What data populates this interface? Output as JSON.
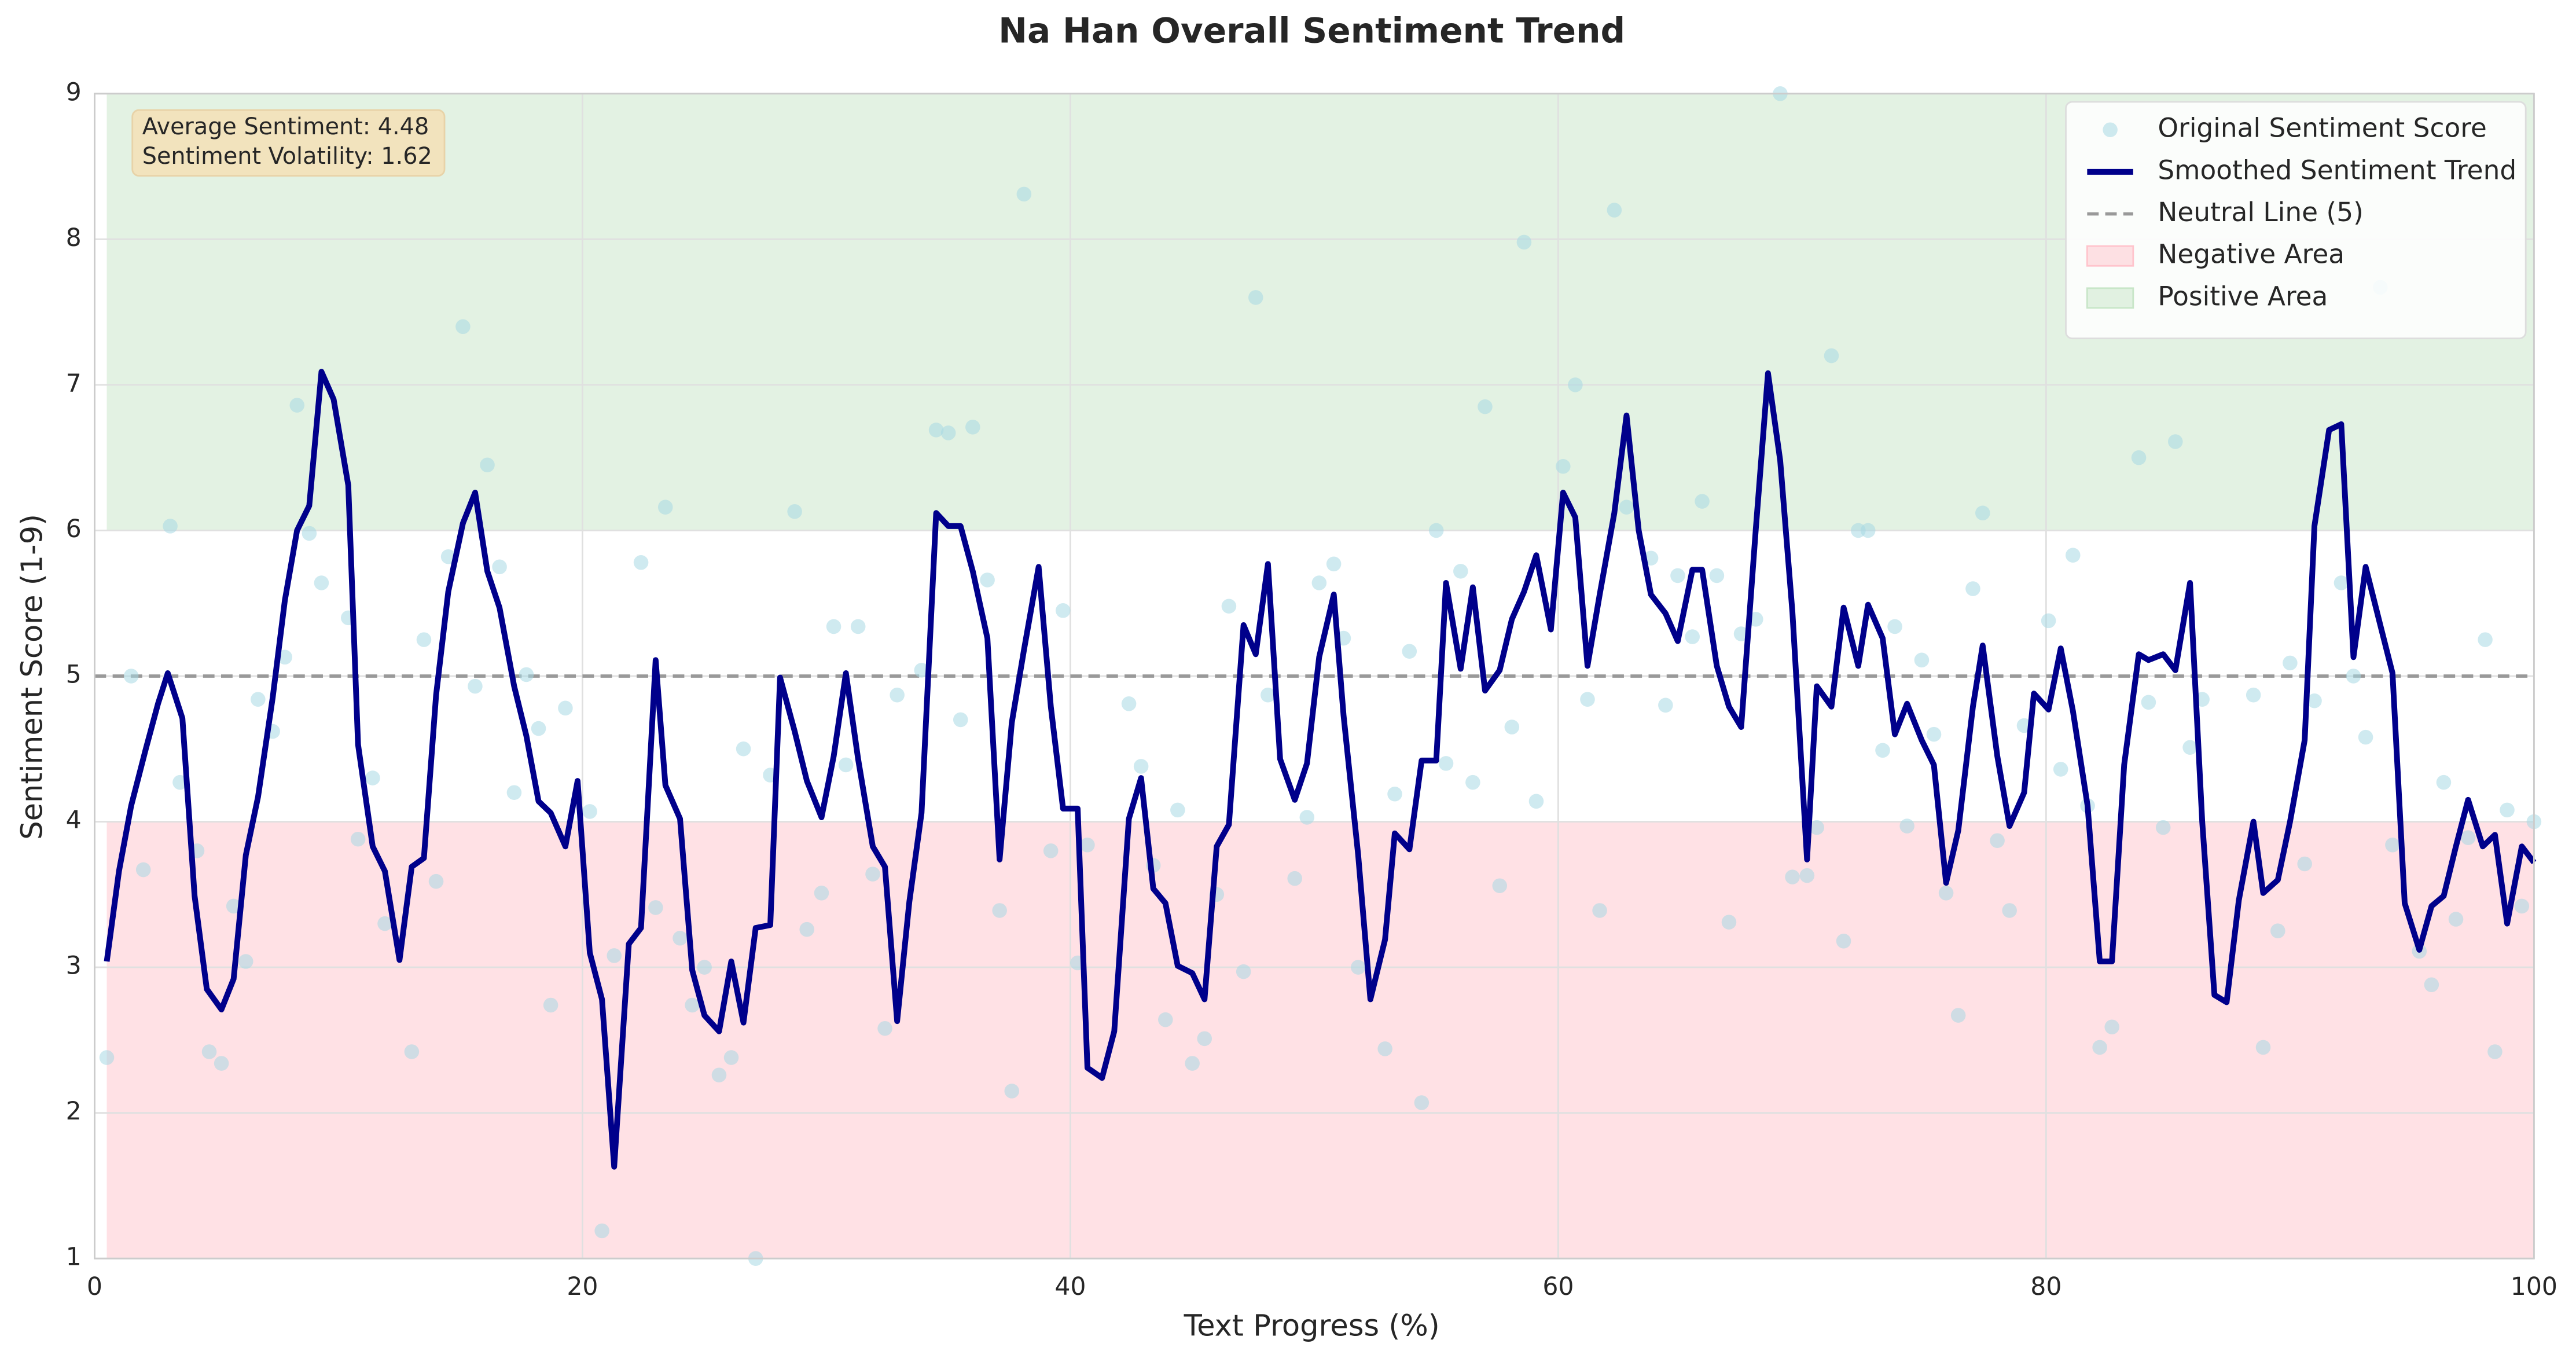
{
  "chart_data": {
    "type": "line",
    "title": "Na Han Overall Sentiment Trend",
    "xlabel": "Text Progress (%)",
    "ylabel": "Sentiment Score (1-9)",
    "xlim": [
      0,
      100
    ],
    "ylim": [
      1,
      9
    ],
    "xticks": [
      0,
      20,
      40,
      60,
      80,
      100
    ],
    "yticks": [
      1,
      2,
      3,
      4,
      5,
      6,
      7,
      8,
      9
    ],
    "grid": true,
    "legend": "upper right",
    "annotations": [
      "Average Sentiment: 4.48",
      "Sentiment Volatility: 1.62"
    ],
    "bands": [
      {
        "name": "Negative Area",
        "range": [
          1,
          4
        ],
        "color": "#ffc4cc"
      },
      {
        "name": "Positive Area",
        "range": [
          6,
          9
        ],
        "color": "#c8e6c8"
      }
    ],
    "neutral_line": {
      "name": "Neutral Line (5)",
      "value": 5,
      "color": "#999999"
    },
    "series": [
      {
        "name": "Original Sentiment Score",
        "type": "scatter",
        "color": "#a8d8e3",
        "x": [
          0.5,
          1.5,
          2.0,
          3.1,
          3.5,
          4.2,
          4.7,
          5.2,
          5.7,
          6.2,
          6.7,
          7.3,
          7.8,
          8.3,
          8.8,
          9.3,
          10.4,
          10.8,
          11.4,
          11.9,
          13.0,
          13.5,
          14.0,
          14.5,
          15.1,
          15.6,
          16.1,
          16.6,
          17.2,
          17.7,
          18.2,
          18.7,
          19.3,
          20.3,
          20.8,
          21.3,
          22.4,
          23.0,
          23.4,
          24.0,
          24.5,
          25.0,
          25.6,
          26.1,
          26.6,
          27.1,
          27.7,
          28.7,
          29.2,
          29.8,
          30.3,
          30.8,
          31.3,
          31.9,
          32.4,
          32.9,
          33.9,
          34.5,
          35.0,
          35.5,
          36.0,
          36.6,
          37.1,
          37.6,
          38.1,
          39.2,
          39.7,
          40.3,
          40.7,
          42.4,
          42.9,
          43.4,
          43.9,
          44.4,
          45.0,
          45.5,
          46.0,
          46.5,
          47.1,
          47.6,
          48.1,
          49.2,
          49.7,
          50.2,
          50.8,
          51.2,
          51.8,
          52.9,
          53.3,
          53.9,
          54.4,
          55.0,
          55.4,
          56.0,
          56.5,
          57.0,
          57.6,
          58.1,
          58.6,
          59.1,
          60.2,
          60.7,
          61.2,
          61.7,
          62.3,
          62.8,
          63.8,
          64.4,
          64.9,
          65.5,
          65.9,
          66.5,
          67.0,
          67.5,
          68.1,
          69.1,
          69.6,
          70.2,
          70.6,
          71.2,
          71.7,
          72.3,
          72.7,
          73.3,
          73.8,
          74.3,
          74.9,
          75.4,
          75.9,
          76.4,
          77.0,
          77.4,
          78.0,
          78.5,
          79.1,
          80.1,
          80.6,
          81.1,
          81.7,
          82.2,
          82.7,
          83.8,
          84.2,
          84.8,
          85.3,
          85.9,
          86.4,
          88.5,
          88.9,
          89.5,
          90.0,
          90.6,
          91.0,
          92.1,
          92.6,
          93.1,
          93.7,
          94.2,
          95.3,
          95.8,
          96.3,
          96.8,
          97.3,
          98.0,
          98.4,
          98.9,
          99.5,
          100.0
        ],
        "values": [
          2.38,
          5.0,
          3.67,
          6.03,
          4.27,
          3.8,
          2.42,
          2.34,
          3.42,
          3.04,
          4.84,
          4.62,
          5.13,
          6.86,
          5.98,
          5.64,
          5.4,
          3.88,
          4.3,
          3.3,
          2.42,
          5.25,
          3.59,
          5.82,
          7.4,
          4.93,
          6.45,
          5.75,
          4.2,
          5.01,
          4.64,
          2.74,
          4.78,
          4.07,
          1.19,
          3.08,
          5.78,
          3.41,
          6.16,
          3.2,
          2.74,
          3.0,
          2.26,
          2.38,
          4.5,
          1.0,
          4.32,
          6.13,
          3.26,
          3.51,
          5.34,
          4.39,
          5.34,
          3.64,
          2.58,
          4.87,
          5.04,
          6.69,
          6.67,
          4.7,
          6.71,
          5.66,
          3.39,
          2.15,
          8.31,
          3.8,
          5.45,
          3.03,
          3.84,
          4.81,
          4.38,
          3.7,
          2.64,
          4.08,
          2.34,
          2.51,
          3.5,
          5.48,
          2.97,
          7.6,
          4.87,
          3.61,
          4.03,
          5.64,
          5.77,
          5.26,
          3.0,
          2.44,
          4.19,
          5.17,
          2.07,
          6.0,
          4.4,
          5.72,
          4.27,
          6.85,
          3.56,
          4.65,
          7.98,
          4.14,
          6.44,
          7.0,
          4.84,
          3.39,
          8.2,
          6.16,
          5.81,
          4.8,
          5.69,
          5.27,
          6.2,
          5.69,
          3.31,
          5.29,
          5.39,
          9.0,
          3.62,
          3.63,
          3.96,
          7.2,
          3.18,
          6.0,
          6.0,
          4.49,
          5.34,
          3.97,
          5.11,
          4.6,
          3.51,
          2.67,
          5.6,
          6.12,
          3.87,
          3.39,
          4.66,
          5.38,
          4.36,
          5.83,
          4.11,
          2.45,
          2.59,
          6.5,
          4.82,
          3.96,
          6.61,
          4.51,
          4.84,
          4.87,
          2.45,
          3.25,
          5.09,
          3.71,
          4.83,
          5.64,
          5.0,
          4.58,
          7.67,
          3.84,
          3.11,
          2.88,
          4.27,
          3.33,
          3.89,
          5.25,
          2.42,
          4.08,
          3.42,
          4.0
        ]
      },
      {
        "name": "Smoothed Sentiment Trend",
        "type": "line",
        "color": "#00008b",
        "x": [
          0.5,
          1.0,
          1.5,
          2.1,
          2.6,
          3.0,
          3.6,
          4.1,
          4.6,
          5.2,
          5.7,
          6.2,
          6.7,
          7.3,
          7.8,
          8.3,
          8.8,
          9.3,
          9.8,
          10.4,
          10.8,
          11.4,
          11.9,
          12.5,
          13.0,
          13.5,
          14.0,
          14.5,
          15.1,
          15.6,
          16.1,
          16.6,
          17.2,
          17.7,
          18.2,
          18.7,
          19.3,
          19.8,
          20.3,
          20.8,
          21.3,
          21.9,
          22.4,
          23.0,
          23.4,
          24.0,
          24.5,
          25.0,
          25.6,
          26.1,
          26.6,
          27.1,
          27.7,
          28.1,
          28.7,
          29.2,
          29.8,
          30.3,
          30.8,
          31.3,
          31.9,
          32.4,
          32.9,
          33.4,
          33.9,
          34.5,
          35.0,
          35.5,
          36.0,
          36.6,
          37.1,
          37.6,
          38.1,
          38.7,
          39.2,
          39.7,
          40.3,
          40.7,
          41.3,
          41.8,
          42.4,
          42.9,
          43.4,
          43.9,
          44.4,
          45.0,
          45.5,
          46.0,
          46.5,
          47.1,
          47.6,
          48.1,
          48.6,
          49.2,
          49.7,
          50.2,
          50.8,
          51.2,
          51.8,
          52.3,
          52.9,
          53.3,
          53.9,
          54.4,
          55.0,
          55.4,
          56.0,
          56.5,
          57.0,
          57.6,
          58.1,
          58.6,
          59.1,
          59.7,
          60.2,
          60.7,
          61.2,
          61.7,
          62.3,
          62.8,
          63.3,
          63.8,
          64.4,
          64.9,
          65.5,
          65.9,
          66.5,
          67.0,
          67.5,
          68.1,
          68.6,
          69.1,
          69.6,
          70.2,
          70.6,
          71.2,
          71.7,
          72.3,
          72.7,
          73.3,
          73.8,
          74.3,
          74.9,
          75.4,
          75.9,
          76.4,
          77.0,
          77.4,
          78.0,
          78.5,
          79.1,
          79.5,
          80.1,
          80.6,
          81.1,
          81.7,
          82.2,
          82.7,
          83.2,
          83.8,
          84.2,
          84.8,
          85.3,
          85.9,
          86.4,
          86.9,
          87.4,
          87.9,
          88.5,
          88.9,
          89.5,
          90.0,
          90.6,
          91.0,
          91.6,
          92.1,
          92.6,
          93.1,
          93.7,
          94.2,
          94.7,
          95.3,
          95.8,
          96.3,
          96.8,
          97.3,
          97.9,
          98.4,
          98.9,
          99.5,
          100.0
        ],
        "values": [
          3.04,
          3.66,
          4.11,
          4.5,
          4.81,
          5.02,
          4.71,
          3.49,
          2.85,
          2.71,
          2.92,
          3.77,
          4.17,
          4.85,
          5.52,
          6.0,
          6.17,
          7.09,
          6.9,
          6.31,
          4.53,
          3.83,
          3.66,
          3.05,
          3.69,
          3.75,
          4.87,
          5.58,
          6.05,
          6.26,
          5.72,
          5.47,
          4.93,
          4.59,
          4.14,
          4.06,
          3.83,
          4.28,
          3.1,
          2.78,
          1.63,
          3.16,
          3.27,
          5.11,
          4.25,
          4.02,
          2.98,
          2.67,
          2.56,
          3.04,
          2.62,
          3.27,
          3.29,
          4.99,
          4.62,
          4.28,
          4.03,
          4.45,
          5.02,
          4.43,
          3.83,
          3.69,
          2.63,
          3.45,
          4.06,
          6.12,
          6.03,
          6.03,
          5.72,
          5.26,
          3.74,
          4.68,
          5.18,
          5.75,
          4.79,
          4.09,
          4.09,
          2.31,
          2.24,
          2.56,
          4.02,
          4.3,
          3.54,
          3.44,
          3.01,
          2.96,
          2.78,
          3.83,
          3.98,
          5.35,
          5.15,
          5.77,
          4.43,
          4.15,
          4.4,
          5.13,
          5.56,
          4.73,
          3.77,
          2.78,
          3.19,
          3.92,
          3.81,
          4.42,
          4.42,
          5.64,
          5.05,
          5.61,
          4.9,
          5.04,
          5.39,
          5.58,
          5.83,
          5.32,
          6.26,
          6.09,
          5.07,
          5.56,
          6.12,
          6.79,
          6.0,
          5.56,
          5.43,
          5.24,
          5.73,
          5.73,
          5.07,
          4.79,
          4.65,
          6.01,
          7.08,
          6.48,
          5.44,
          3.74,
          4.93,
          4.79,
          5.47,
          5.07,
          5.49,
          5.26,
          4.6,
          4.81,
          4.56,
          4.39,
          3.58,
          3.94,
          4.79,
          5.21,
          4.45,
          3.97,
          4.2,
          4.88,
          4.77,
          5.19,
          4.76,
          4.11,
          3.04,
          3.04,
          4.39,
          5.15,
          5.11,
          5.15,
          5.04,
          5.64,
          4.0,
          2.81,
          2.76,
          3.46,
          4.0,
          3.51,
          3.6,
          4.0,
          4.56,
          6.03,
          6.69,
          6.73,
          5.13,
          5.75,
          5.35,
          5.02,
          3.44,
          3.12,
          3.42,
          3.49,
          3.83,
          4.15,
          3.83,
          3.91,
          3.3,
          3.83,
          3.72
        ]
      }
    ]
  }
}
